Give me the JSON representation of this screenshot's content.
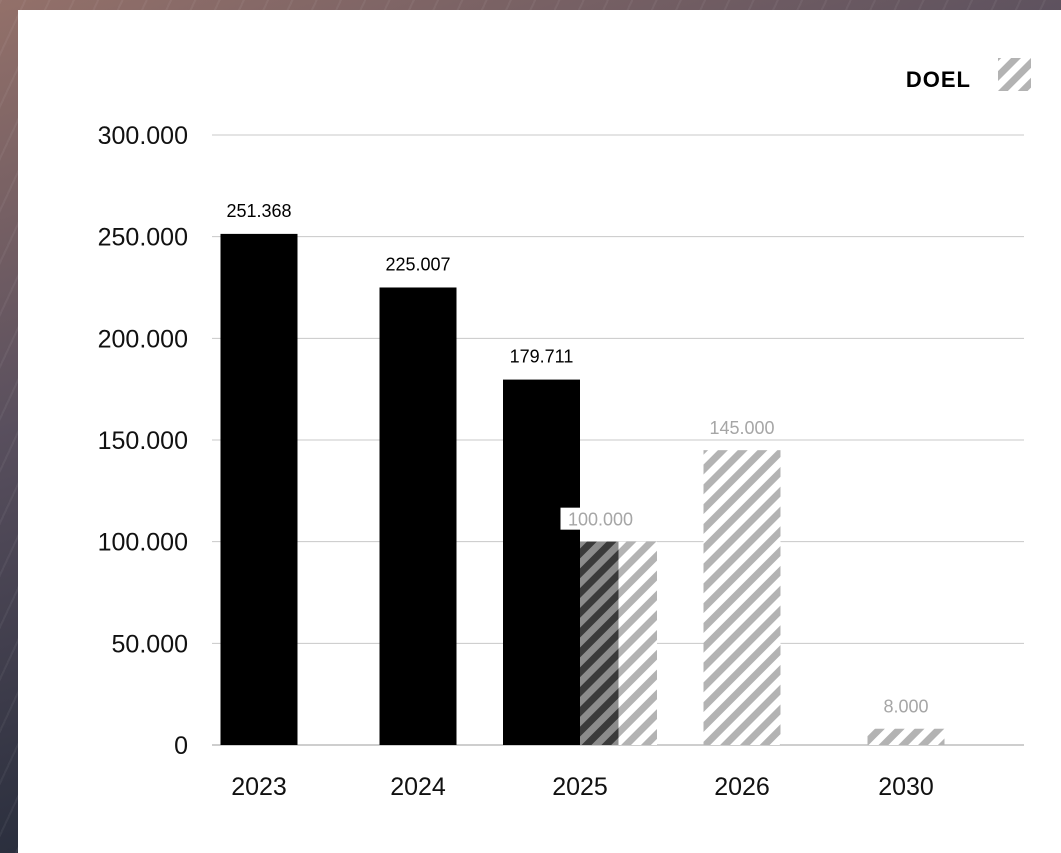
{
  "legend": {
    "label": "DOEL"
  },
  "colors": {
    "actual": "#000000",
    "target_stripe": "#b3b3b3",
    "grid": "#bdbdbd",
    "target_label": "#a6a6a6"
  },
  "chart_data": {
    "type": "bar",
    "categories": [
      "2023",
      "2024",
      "2025",
      "2026",
      "2030"
    ],
    "ylim": [
      0,
      300000
    ],
    "yticks": [
      "0",
      "50.000",
      "100.000",
      "150.000",
      "200.000",
      "250.000",
      "300.000"
    ],
    "legend_position": "top-right",
    "grid": true,
    "series": [
      {
        "values": [
          251368,
          225007,
          179711,
          null,
          null
        ],
        "labels": [
          "251.368",
          "225.007",
          "179.711",
          "",
          ""
        ]
      },
      {
        "name": "DOEL",
        "values": [
          null,
          null,
          100000,
          145000,
          8000
        ],
        "labels": [
          "",
          "",
          "100.000",
          "145.000",
          "8.000"
        ]
      }
    ]
  }
}
